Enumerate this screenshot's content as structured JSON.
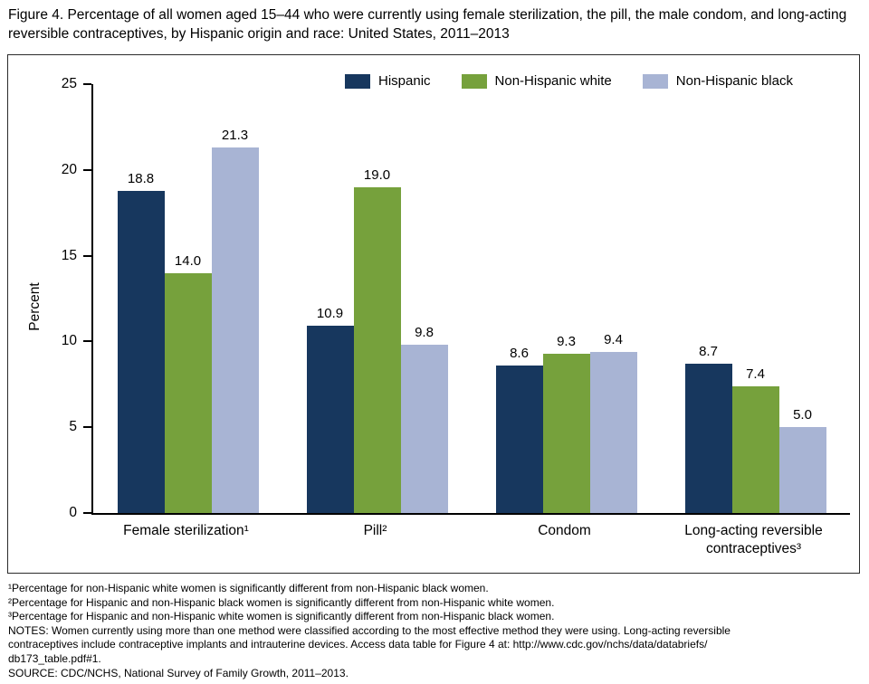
{
  "figure": {
    "title": "Figure 4. Percentage of all women aged 15–44 who were currently using female sterilization, the pill, the male condom, and long-acting reversible contraceptives, by Hispanic origin and race: United States, 2011–2013"
  },
  "chart_data": {
    "type": "bar",
    "title": "Figure 4. Percentage of all women aged 15–44 who were currently using female sterilization, the pill, the male condom, and long-acting reversible contraceptives, by Hispanic origin and race: United States, 2011–2013",
    "categories": [
      "Female sterilization¹",
      "Pill²",
      "Condom",
      "Long-acting reversible\ncontraceptives³"
    ],
    "series": [
      {
        "name": "Hispanic",
        "color": "#17375E",
        "values": [
          18.8,
          10.9,
          8.6,
          8.7
        ]
      },
      {
        "name": "Non-Hispanic white",
        "color": "#76A13C",
        "values": [
          14.0,
          19.0,
          9.3,
          7.4
        ]
      },
      {
        "name": "Non-Hispanic black",
        "color": "#A8B4D4",
        "values": [
          21.3,
          9.8,
          9.4,
          5.0
        ]
      }
    ],
    "xlabel": "",
    "ylabel": "Percent",
    "ylim": [
      0,
      25
    ],
    "yticks": [
      0,
      5,
      10,
      15,
      20,
      25
    ],
    "grid": false,
    "legend_position": "top",
    "value_label_decimals": 1
  },
  "footnotes": {
    "lines": [
      "¹Percentage for non-Hispanic white women is significantly different from non-Hispanic black women.",
      "²Percentage for Hispanic and non-Hispanic black women is significantly different from non-Hispanic white women.",
      "³Percentage for Hispanic and non-Hispanic white women is significantly different from non-Hispanic black women.",
      "NOTES: Women currently using more than one method were classified according to the most effective method they were using. Long-acting reversible",
      "contraceptives include contraceptive implants and intrauterine devices. Access data table for Figure 4 at: http://www.cdc.gov/nchs/data/databriefs/",
      "db173_table.pdf#1.",
      "SOURCE: CDC/NCHS, National Survey of Family Growth, 2011–2013."
    ]
  }
}
